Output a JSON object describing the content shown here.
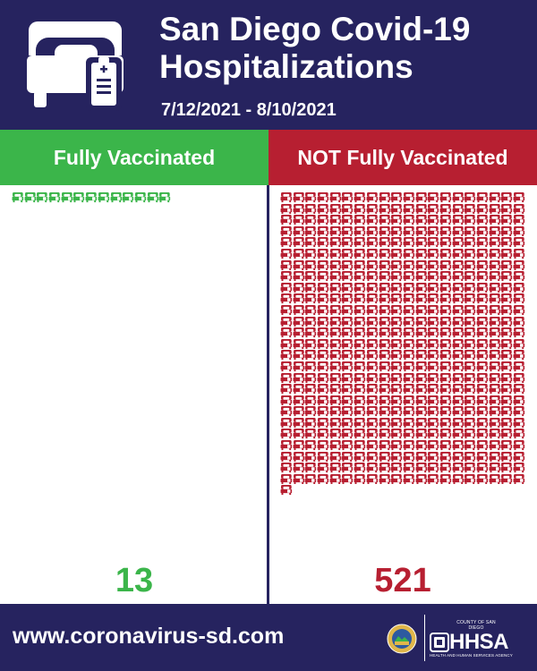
{
  "header": {
    "icon": "hospital-bed-icon",
    "title_line1": "San Diego Covid-19",
    "title_line2": "Hospitalizations",
    "date_range": "7/12/2021 - 8/10/2021"
  },
  "columns": {
    "left": {
      "label": "Fully Vaccinated",
      "count": "13",
      "count_value": 13,
      "color": "#3bb54a"
    },
    "right": {
      "label": "NOT Fully Vaccinated",
      "count": "521",
      "count_value": 521,
      "color": "#b71f31"
    }
  },
  "colors": {
    "navy": "#26235f",
    "green": "#3bb54a",
    "red": "#b71f31"
  },
  "footer": {
    "website": "www.coronavirus-sd.com",
    "seal_icon": "county-seal-icon",
    "logo_top": "COUNTY OF SAN DIEGO",
    "logo_main": "HHSA",
    "logo_sub": "HEALTH AND HUMAN SERVICES AGENCY"
  }
}
